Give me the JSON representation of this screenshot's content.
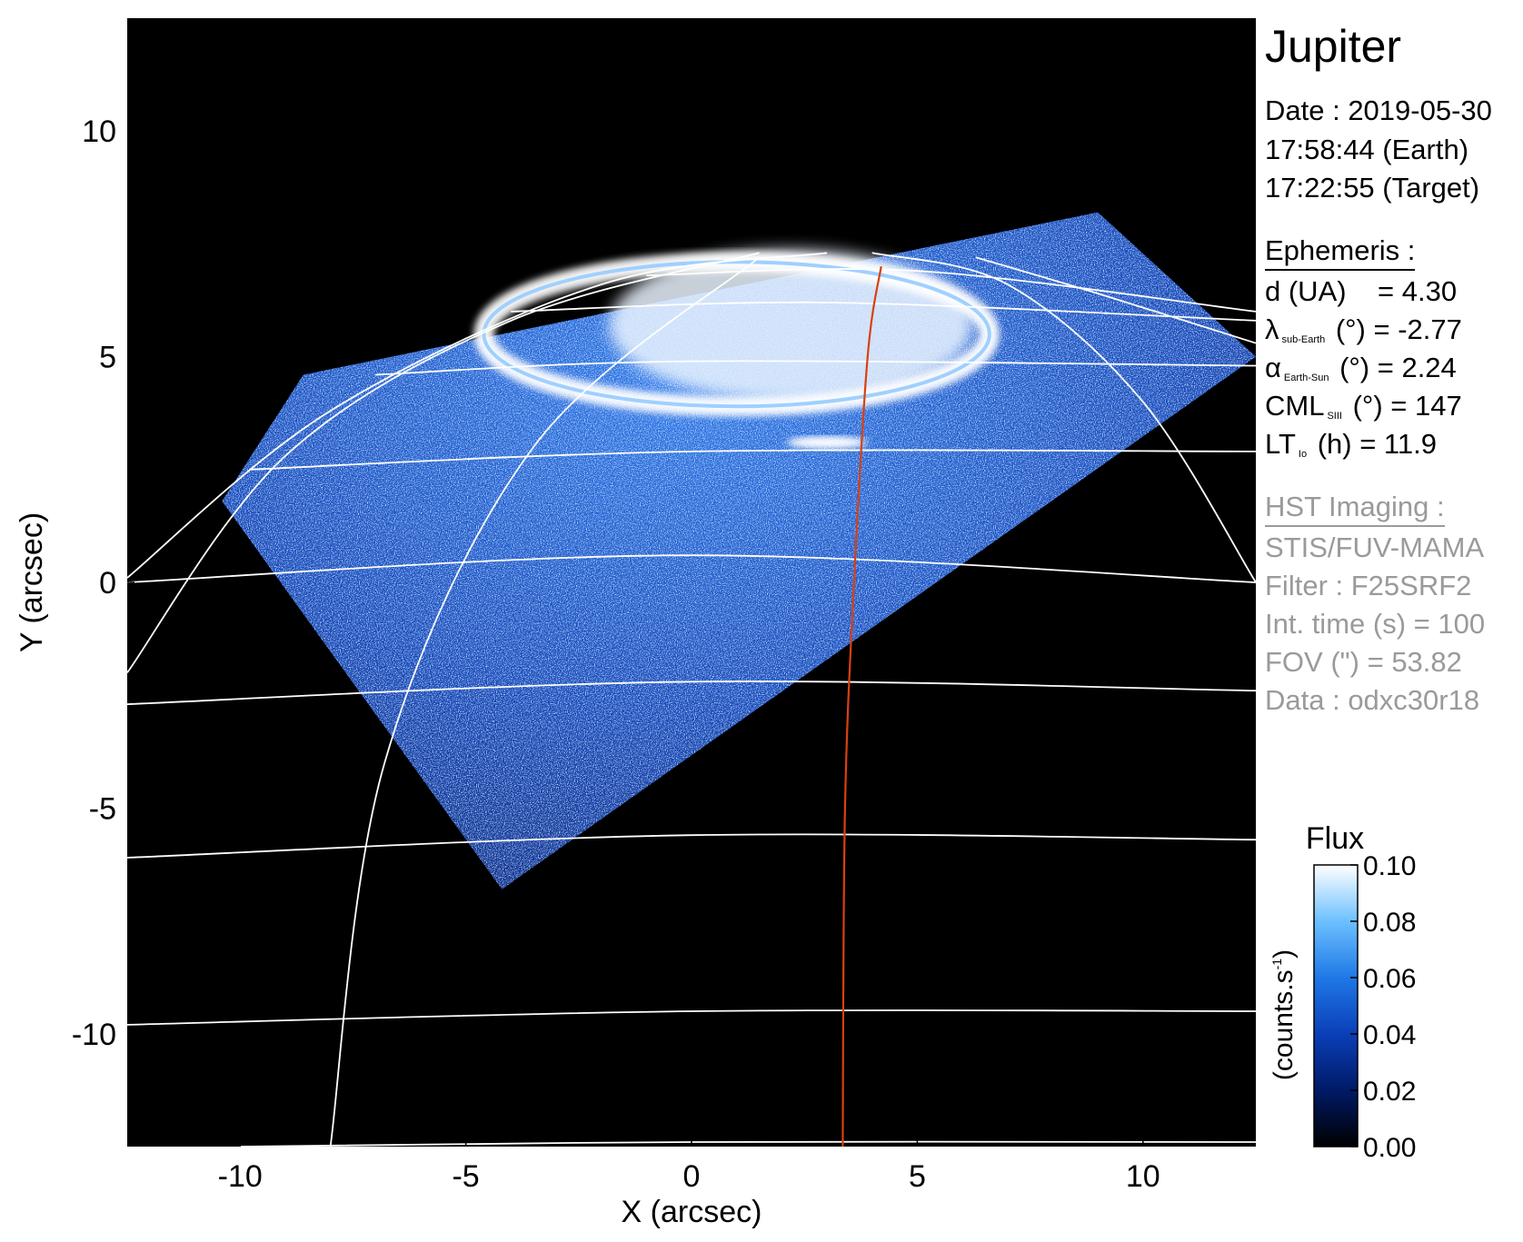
{
  "title": "Jupiter",
  "date": {
    "date_line": "Date : 2019-05-30",
    "earth_time": "17:58:44 (Earth)",
    "target_time": "17:22:55 (Target)"
  },
  "ephemeris": {
    "heading": "Ephemeris :",
    "d_label": "d (UA)",
    "d_value": "= 4.30",
    "lambda_symbol": "λ",
    "lambda_sub": "sub-Earth",
    "lambda_value": "(°) = -2.77",
    "alpha_symbol": "α",
    "alpha_sub": "Earth-Sun",
    "alpha_value": "(°) = 2.24",
    "cml_symbol": "CML",
    "cml_sub": "SIII",
    "cml_value": "(°) = 147",
    "lt_symbol": "LT",
    "lt_sub": "Io",
    "lt_value": "(h) = 11.9"
  },
  "hst": {
    "heading": "HST Imaging :",
    "instrument": "STIS/FUV-MAMA",
    "filter": "Filter : F25SRF2",
    "int_time": "Int. time (s) = 100",
    "fov": "FOV (\") = 53.82",
    "data": "Data : odxc30r18"
  },
  "colorbar": {
    "title": "Flux",
    "label": "(counts.s",
    "label_sup": "-1",
    "label_end": ")",
    "ticks": [
      "0.10",
      "0.08",
      "0.06",
      "0.04",
      "0.02",
      "0.00"
    ],
    "range": [
      0,
      0.1
    ],
    "colors": [
      "#000000",
      "#001a66",
      "#0a3fb8",
      "#1f78e6",
      "#6cc0ff",
      "#ffffff"
    ]
  },
  "colors": {
    "background": "#000000",
    "grid": "#ffffff",
    "io_footprint": "#d94010",
    "aurora": "#ffffff",
    "disk_glow": "#1f5fd6"
  },
  "chart_data": {
    "type": "heatmap",
    "title": "Jupiter",
    "xlabel": "X (arcsec)",
    "ylabel": "Y (arcsec)",
    "xlim": [
      -12.5,
      12.5
    ],
    "ylim": [
      -12.5,
      12.5
    ],
    "xticks": [
      "-10",
      "-5",
      "0",
      "5",
      "10"
    ],
    "yticks": [
      "10",
      "5",
      "0",
      "-5",
      "-10"
    ],
    "xtick_values": [
      -10,
      -5,
      0,
      5,
      10
    ],
    "ytick_values": [
      10,
      5,
      0,
      -5,
      -10
    ],
    "image_region": [
      [
        -10.4,
        1.8
      ],
      [
        -4.2,
        -6.8
      ],
      [
        12.5,
        5.0
      ],
      [
        9.0,
        8.2
      ],
      [
        -8.6,
        4.6
      ]
    ],
    "auroral_oval": {
      "center": [
        1.0,
        5.5
      ],
      "rx": 5.6,
      "ry": 1.6
    },
    "io_footprint": [
      [
        4.2,
        7.0
      ],
      [
        3.9,
        5.0
      ],
      [
        3.6,
        0.0
      ],
      [
        3.4,
        -5.0
      ],
      [
        3.35,
        -12.5
      ]
    ],
    "latitude_lines": [
      [
        [
          -12.5,
          0.0
        ],
        [
          0.0,
          0.6
        ],
        [
          12.5,
          0.0
        ]
      ],
      [
        [
          -12.5,
          -2.7
        ],
        [
          0.0,
          -2.2
        ],
        [
          12.5,
          -2.4
        ]
      ],
      [
        [
          -12.5,
          -6.1
        ],
        [
          0.0,
          -5.6
        ],
        [
          12.5,
          -5.7
        ]
      ],
      [
        [
          -12.5,
          -9.8
        ],
        [
          0.0,
          -9.5
        ],
        [
          12.5,
          -9.5
        ]
      ],
      [
        [
          -10.0,
          -12.5
        ],
        [
          0.0,
          -12.4
        ],
        [
          12.5,
          -12.4
        ]
      ],
      [
        [
          -9.8,
          2.5
        ],
        [
          0.0,
          2.9
        ],
        [
          12.5,
          2.9
        ]
      ],
      [
        [
          -7.0,
          4.6
        ],
        [
          0.0,
          4.9
        ],
        [
          12.5,
          4.8
        ]
      ],
      [
        [
          -4.0,
          6.0
        ],
        [
          3.0,
          6.2
        ],
        [
          12.5,
          5.8
        ]
      ],
      [
        [
          -1.0,
          6.8
        ],
        [
          5.0,
          6.9
        ],
        [
          12.5,
          6.0
        ]
      ]
    ],
    "meridians": [
      [
        [
          -8.0,
          -12.5
        ],
        [
          -6.8,
          -4.0
        ],
        [
          -3.5,
          3.0
        ],
        [
          1.5,
          7.2
        ]
      ],
      [
        [
          -12.5,
          -2.0
        ],
        [
          -9.0,
          2.8
        ],
        [
          -4.0,
          5.8
        ],
        [
          1.5,
          7.3
        ]
      ],
      [
        [
          -12.5,
          0.1
        ],
        [
          -8.0,
          3.8
        ],
        [
          -2.0,
          6.6
        ],
        [
          3.0,
          7.3
        ]
      ],
      [
        [
          12.5,
          0.0
        ],
        [
          10.0,
          4.0
        ],
        [
          7.0,
          6.6
        ],
        [
          4.0,
          7.3
        ]
      ],
      [
        [
          6.3,
          7.2
        ],
        [
          9.0,
          6.4
        ],
        [
          12.5,
          5.3
        ]
      ]
    ]
  }
}
